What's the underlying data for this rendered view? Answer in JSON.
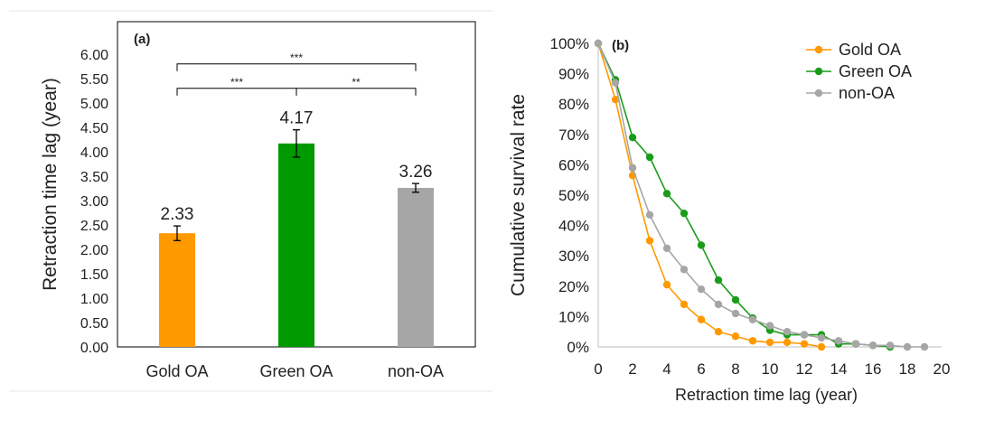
{
  "chart_data": [
    {
      "type": "bar",
      "panel_label": "(a)",
      "categories": [
        "Gold OA",
        "Green OA",
        "non-OA"
      ],
      "values": [
        2.33,
        4.17,
        3.26
      ],
      "value_labels": [
        "2.33",
        "4.17",
        "3.26"
      ],
      "error": [
        0.15,
        0.28,
        0.09
      ],
      "colors": [
        "#ff9900",
        "#009900",
        "#a6a6a6"
      ],
      "ylabel": "Retraction time lag (year)",
      "ylim": [
        0,
        6
      ],
      "yticks": [
        "0.00",
        "0.50",
        "1.00",
        "1.50",
        "2.00",
        "2.50",
        "3.00",
        "3.50",
        "4.00",
        "4.50",
        "5.00",
        "5.50",
        "6.00"
      ],
      "significance": [
        {
          "from": 0,
          "to": 2,
          "label": "***",
          "y": 5.8
        },
        {
          "from": 0,
          "to": 1,
          "label": "***",
          "y": 5.3
        },
        {
          "from": 1,
          "to": 2,
          "label": "**",
          "y": 5.3
        }
      ],
      "grid": false
    },
    {
      "type": "line",
      "panel_label": "(b)",
      "xlabel": "Retraction time lag (year)",
      "ylabel": "Cumulative survival rate",
      "xlim": [
        0,
        20
      ],
      "ylim": [
        0,
        100
      ],
      "xticks": [
        "0",
        "2",
        "4",
        "6",
        "8",
        "10",
        "12",
        "14",
        "16",
        "18",
        "20"
      ],
      "yticks": [
        "0%",
        "10%",
        "20%",
        "30%",
        "40%",
        "50%",
        "60%",
        "70%",
        "80%",
        "90%",
        "100%"
      ],
      "legend_position": "top-right",
      "series": [
        {
          "name": "Gold OA",
          "color": "#ff9900",
          "x": [
            0,
            1,
            2,
            3,
            4,
            5,
            6,
            7,
            8,
            9,
            10,
            11,
            12,
            13
          ],
          "y": [
            100,
            81.5,
            56.5,
            35,
            20.5,
            14,
            9,
            5,
            3.5,
            2,
            1.5,
            1.5,
            1,
            0
          ]
        },
        {
          "name": "Green OA",
          "color": "#1a9c1a",
          "x": [
            0,
            1,
            2,
            3,
            4,
            5,
            6,
            7,
            8,
            9,
            10,
            11,
            12,
            13,
            14,
            15,
            16,
            17
          ],
          "y": [
            100,
            88,
            69,
            62.5,
            50.5,
            44,
            33.5,
            22,
            15.5,
            9.5,
            5.5,
            4,
            4,
            4,
            1,
            1,
            0.5,
            0
          ]
        },
        {
          "name": "non-OA",
          "color": "#a6a6a6",
          "x": [
            0,
            1,
            2,
            3,
            4,
            5,
            6,
            7,
            8,
            9,
            10,
            11,
            12,
            13,
            14,
            15,
            16,
            17,
            18,
            19
          ],
          "y": [
            100,
            87,
            59,
            43.5,
            32.5,
            25.5,
            19,
            14,
            11,
            9,
            7,
            5,
            4,
            3,
            2,
            1,
            0.5,
            0.5,
            0,
            0
          ]
        }
      ]
    }
  ]
}
